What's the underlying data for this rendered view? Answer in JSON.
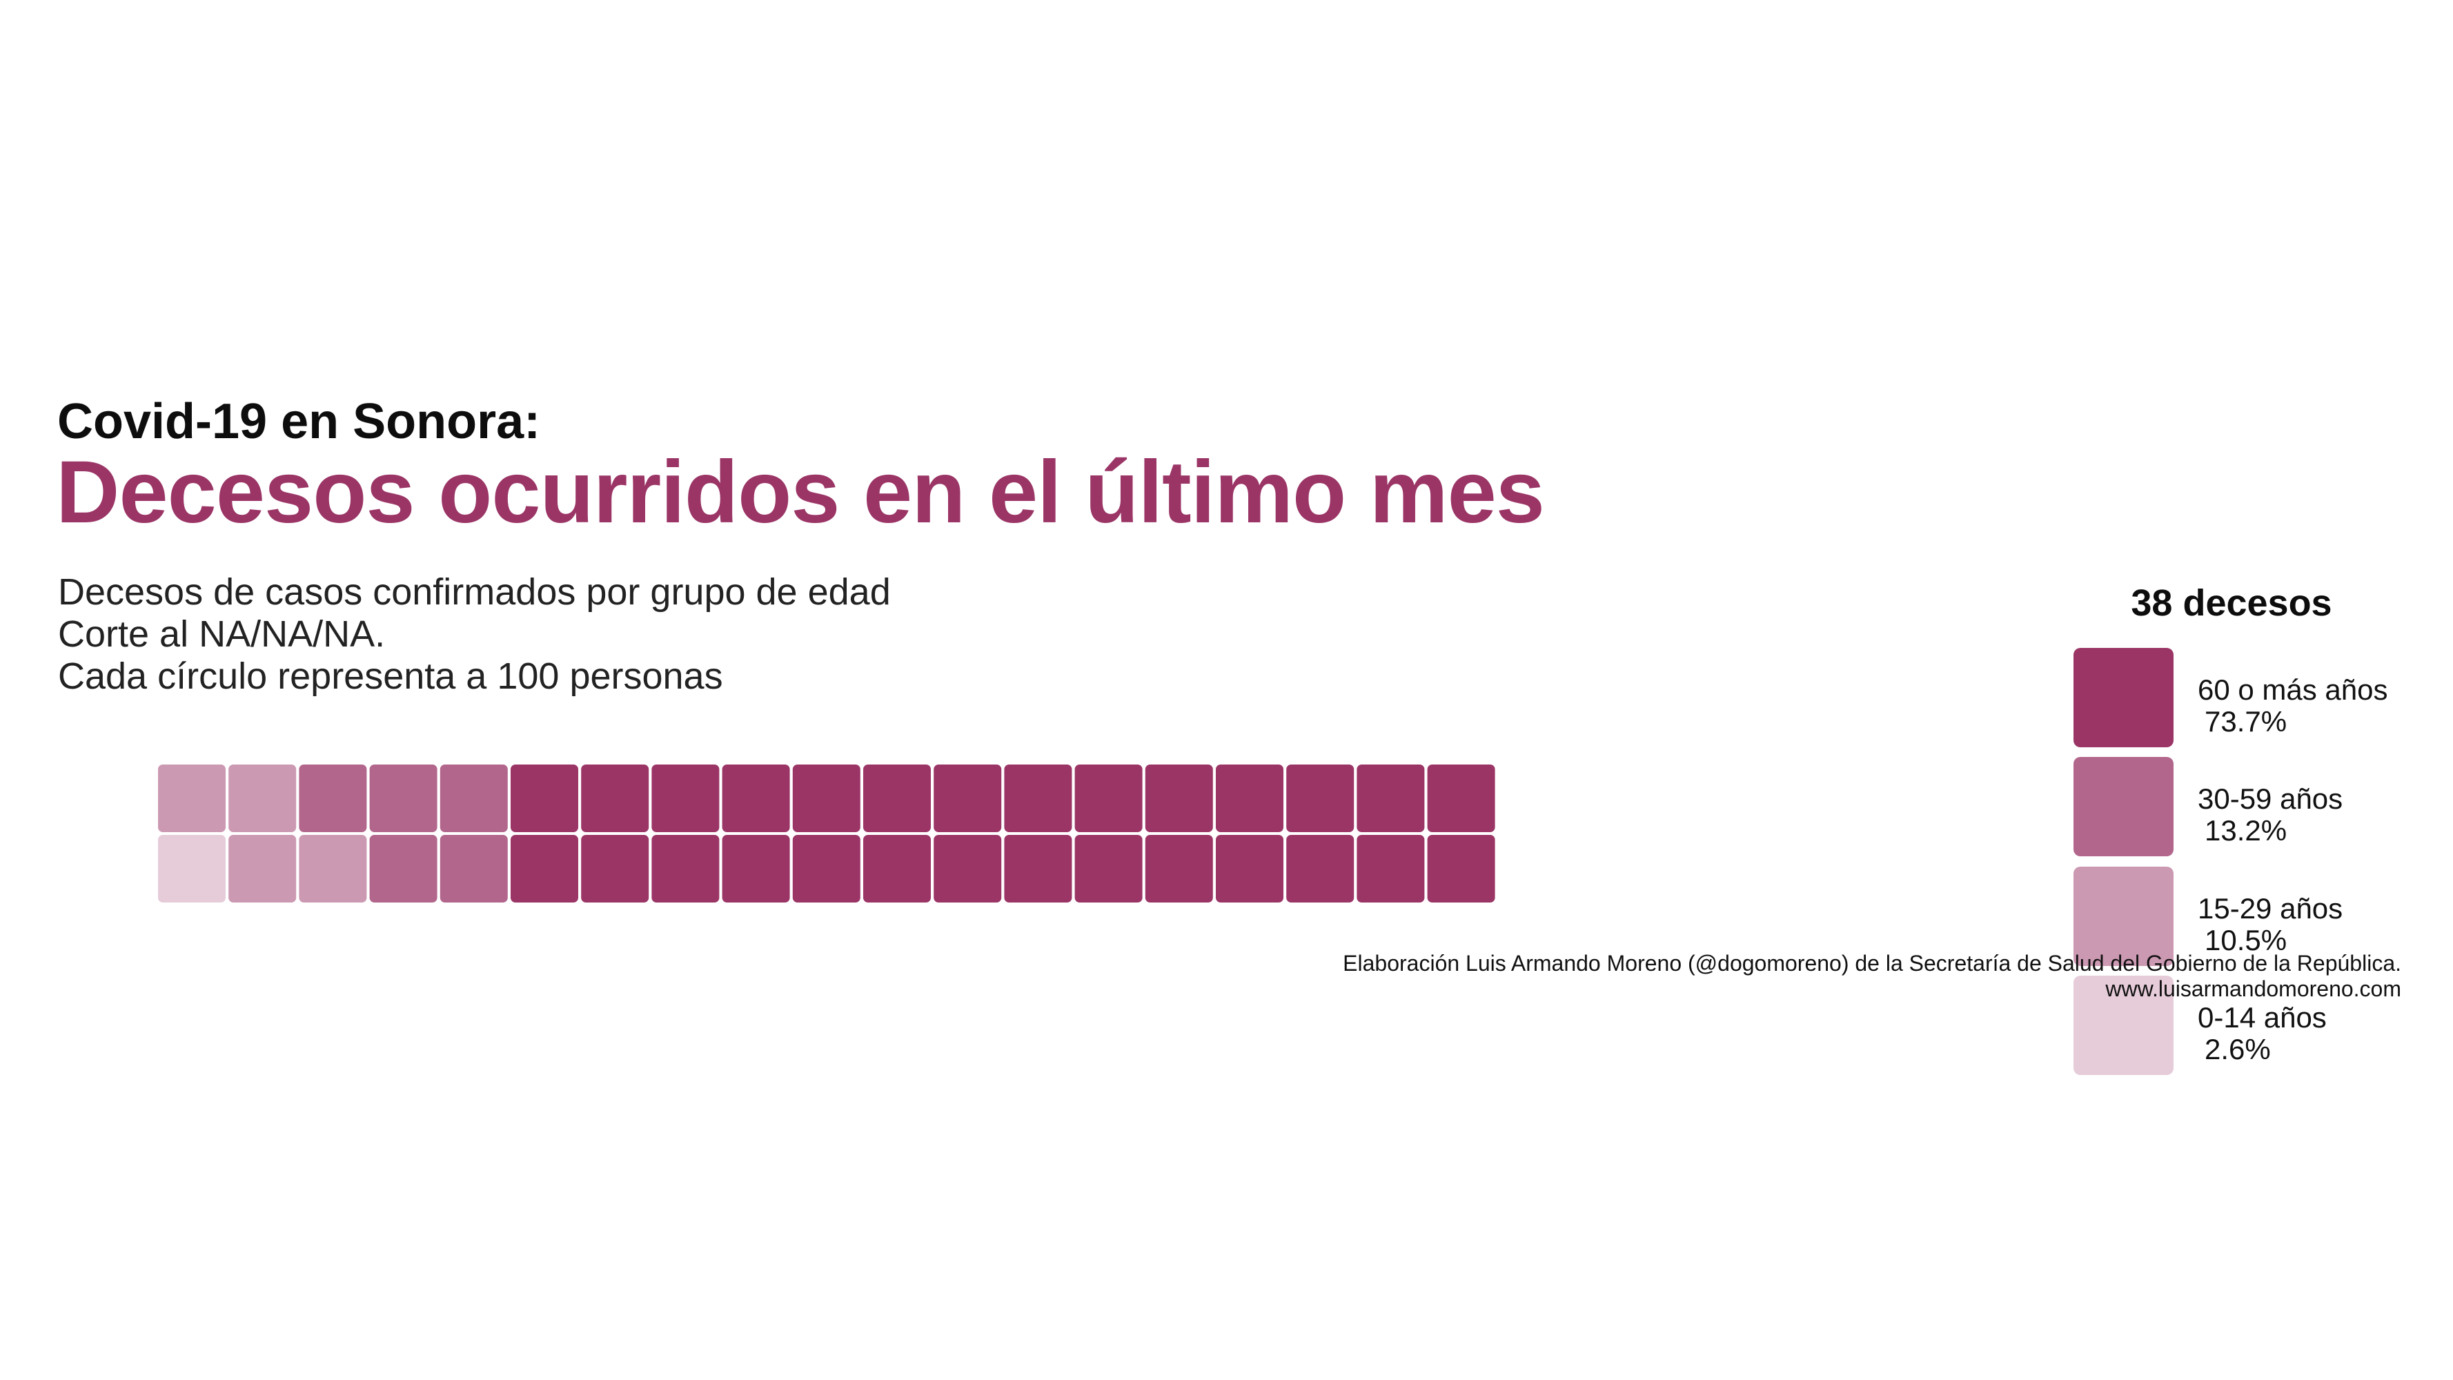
{
  "header": {
    "kicker": "Covid-19 en Sonora:",
    "title": "Decesos ocurridos en el último mes",
    "subtitle_lines": [
      "Decesos de casos confirmados por grupo de edad",
      "Corte al NA/NA/NA.",
      "Cada círculo representa a 100 personas"
    ]
  },
  "legend": {
    "title": "38 decesos",
    "items": [
      {
        "label": "60 o más años",
        "pct": "73.7%",
        "color": "#9b3566"
      },
      {
        "label": "30-59 años",
        "pct": "13.2%",
        "color": "#b2668c"
      },
      {
        "label": "15-29 años",
        "pct": "10.5%",
        "color": "#cc99b2"
      },
      {
        "label": "0-14 años",
        "pct": "2.6%",
        "color": "#e6ccd9"
      }
    ]
  },
  "caption": {
    "line1": "Elaboración Luis Armando Moreno (@dogomoreno) de la Secretaría de Salud del Gobierno de la República.",
    "line2": "www.luisarmandomoreno.com"
  },
  "chart_data": {
    "type": "waffle",
    "total": 38,
    "rows": 2,
    "fill_order": "column-wise, bottom row first",
    "categories": [
      "0-14 años",
      "15-29 años",
      "30-59 años",
      "60 o más años"
    ],
    "values": [
      1,
      4,
      5,
      28
    ],
    "colors": [
      "#e6ccd9",
      "#cc99b2",
      "#b2668c",
      "#9b3566"
    ]
  }
}
